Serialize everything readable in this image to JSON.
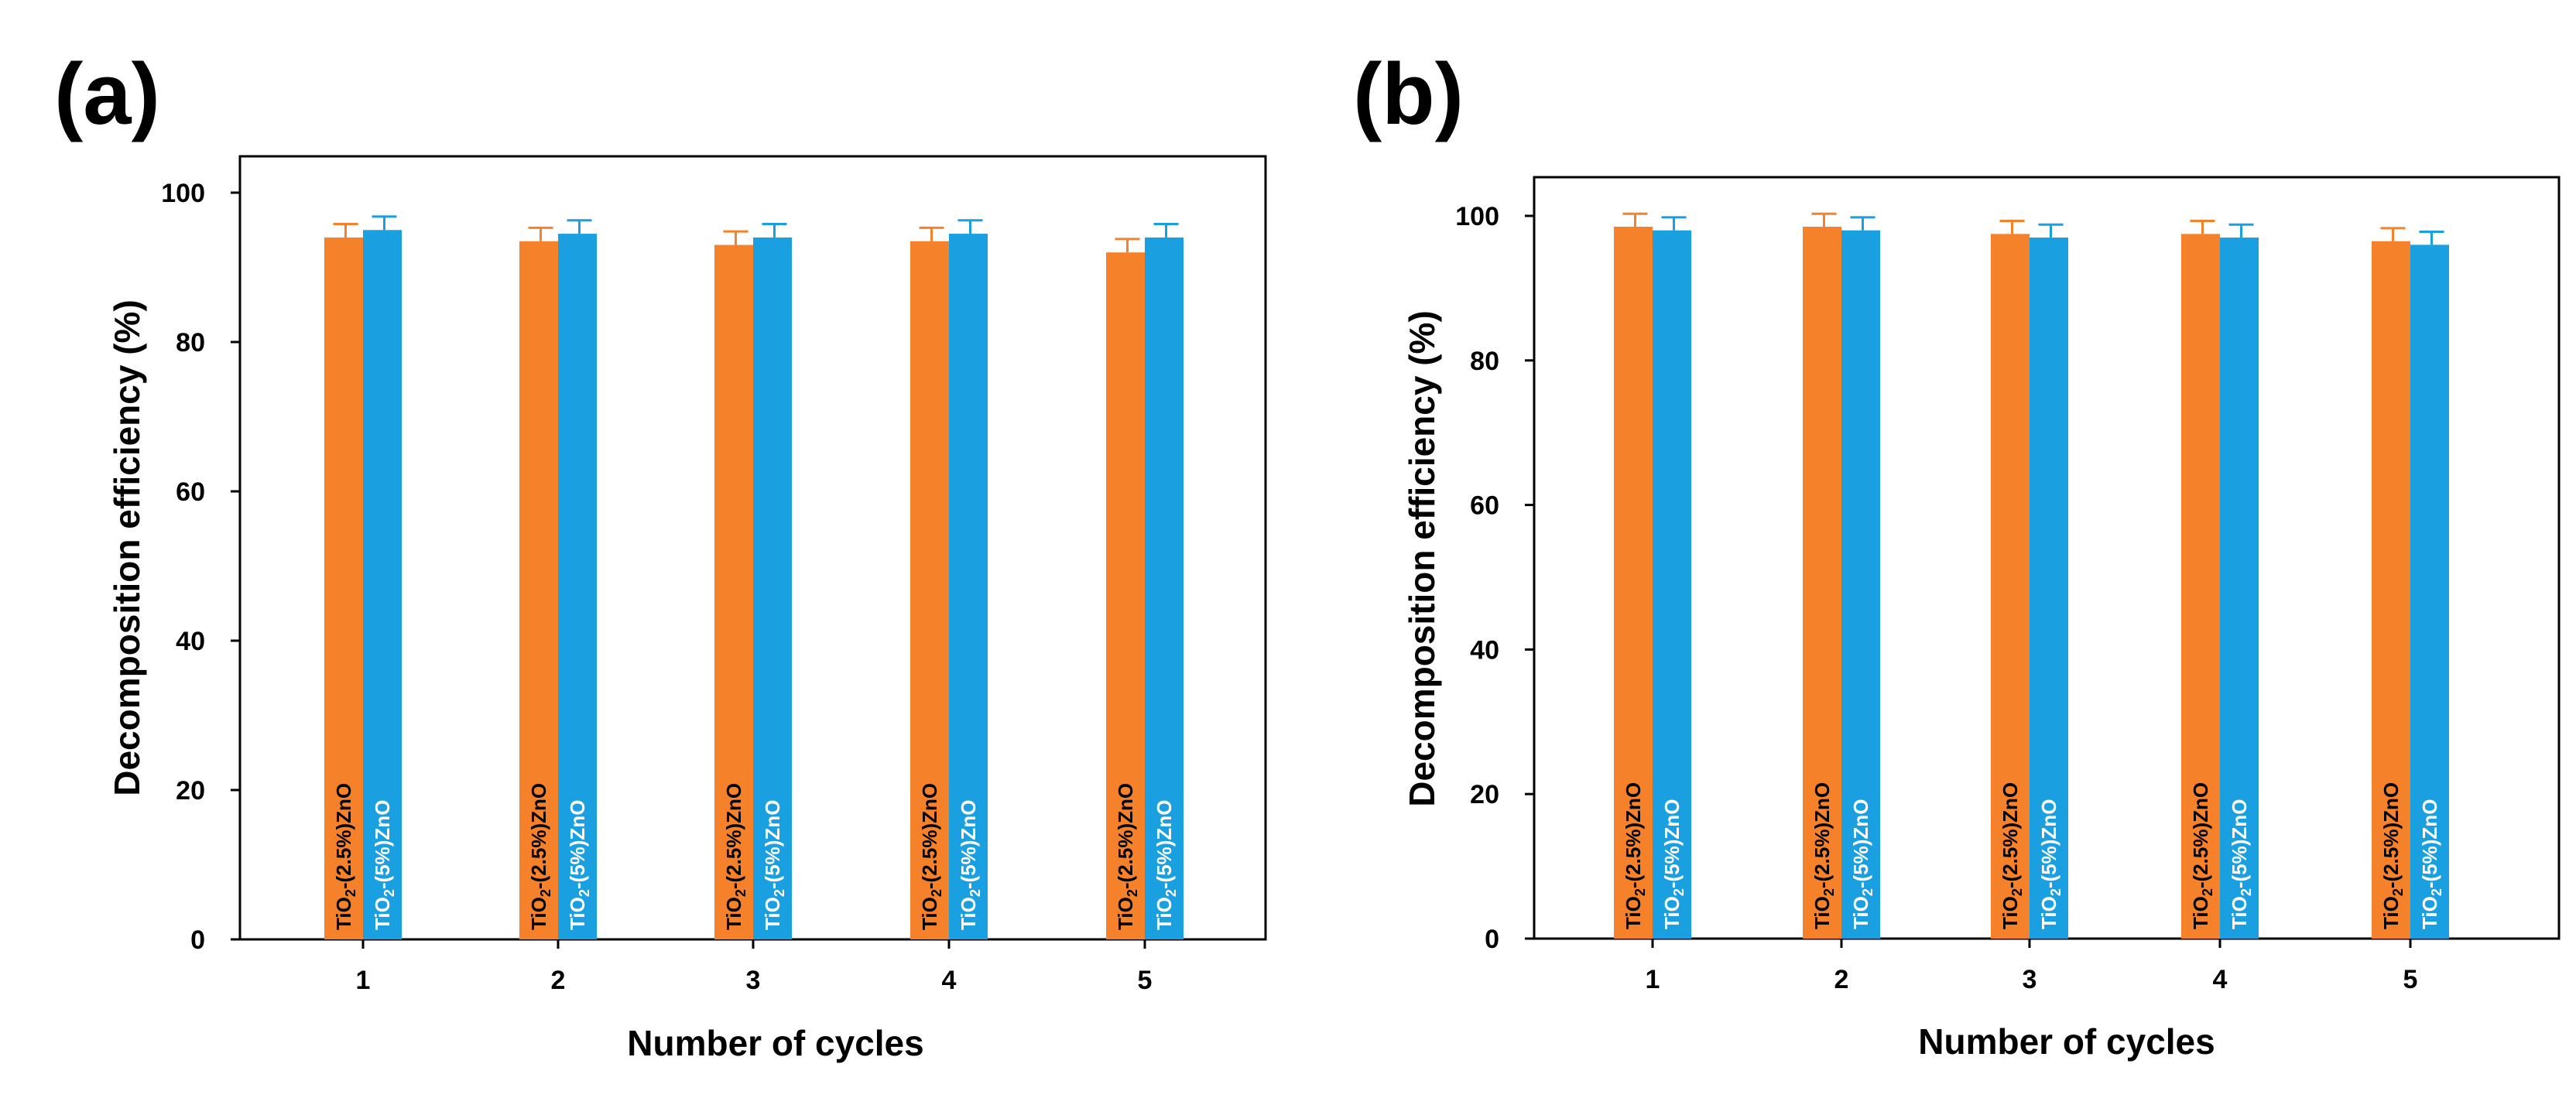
{
  "chart_data": [
    {
      "panel_label": "(a)",
      "type": "bar",
      "title": "",
      "xlabel": "Number of cycles",
      "ylabel": "Decomposition efficiency (%)",
      "categories": [
        "1",
        "2",
        "3",
        "4",
        "5"
      ],
      "ylim": [
        0,
        105
      ],
      "yticks": [
        "0",
        "20",
        "40",
        "60",
        "80",
        "100"
      ],
      "series": [
        {
          "name": "TiO2-(2.5%)ZnO",
          "label_main": "TiO",
          "label_sub": "2",
          "label_rest": "-(2.5%)ZnO",
          "color": "#f5822a",
          "label_color": "#000000",
          "values": [
            94,
            93.5,
            93,
            93.5,
            92
          ],
          "errors": [
            1.8,
            1.8,
            1.8,
            1.8,
            1.8
          ]
        },
        {
          "name": "TiO2-(5%)ZnO",
          "label_main": "TiO",
          "label_sub": "2",
          "label_rest": "-(5%)ZnO",
          "color": "#1a9fe0",
          "label_color": "#ffffff",
          "values": [
            95,
            94.5,
            94,
            94.5,
            94
          ],
          "errors": [
            1.8,
            1.8,
            1.8,
            1.8,
            1.8
          ]
        }
      ]
    },
    {
      "panel_label": "(b)",
      "type": "bar",
      "title": "",
      "xlabel": "Number of cycles",
      "ylabel": "Decomposition efficiency (%)",
      "categories": [
        "1",
        "2",
        "3",
        "4",
        "5"
      ],
      "ylim": [
        0,
        105
      ],
      "yticks": [
        "0",
        "20",
        "40",
        "60",
        "80",
        "100"
      ],
      "series": [
        {
          "name": "TiO2-(2.5%)ZnO",
          "label_main": "TiO",
          "label_sub": "2",
          "label_rest": "-(2.5%)ZnO",
          "color": "#f5822a",
          "label_color": "#000000",
          "values": [
            98.5,
            98.5,
            97.5,
            97.5,
            96.5
          ],
          "errors": [
            1.8,
            1.8,
            1.8,
            1.8,
            1.8
          ]
        },
        {
          "name": "TiO2-(5%)ZnO",
          "label_main": "TiO",
          "label_sub": "2",
          "label_rest": "-(5%)ZnO",
          "color": "#1a9fe0",
          "label_color": "#ffffff",
          "values": [
            98,
            98,
            97,
            97,
            96
          ],
          "errors": [
            1.8,
            1.8,
            1.8,
            1.8,
            1.8
          ]
        }
      ]
    }
  ]
}
